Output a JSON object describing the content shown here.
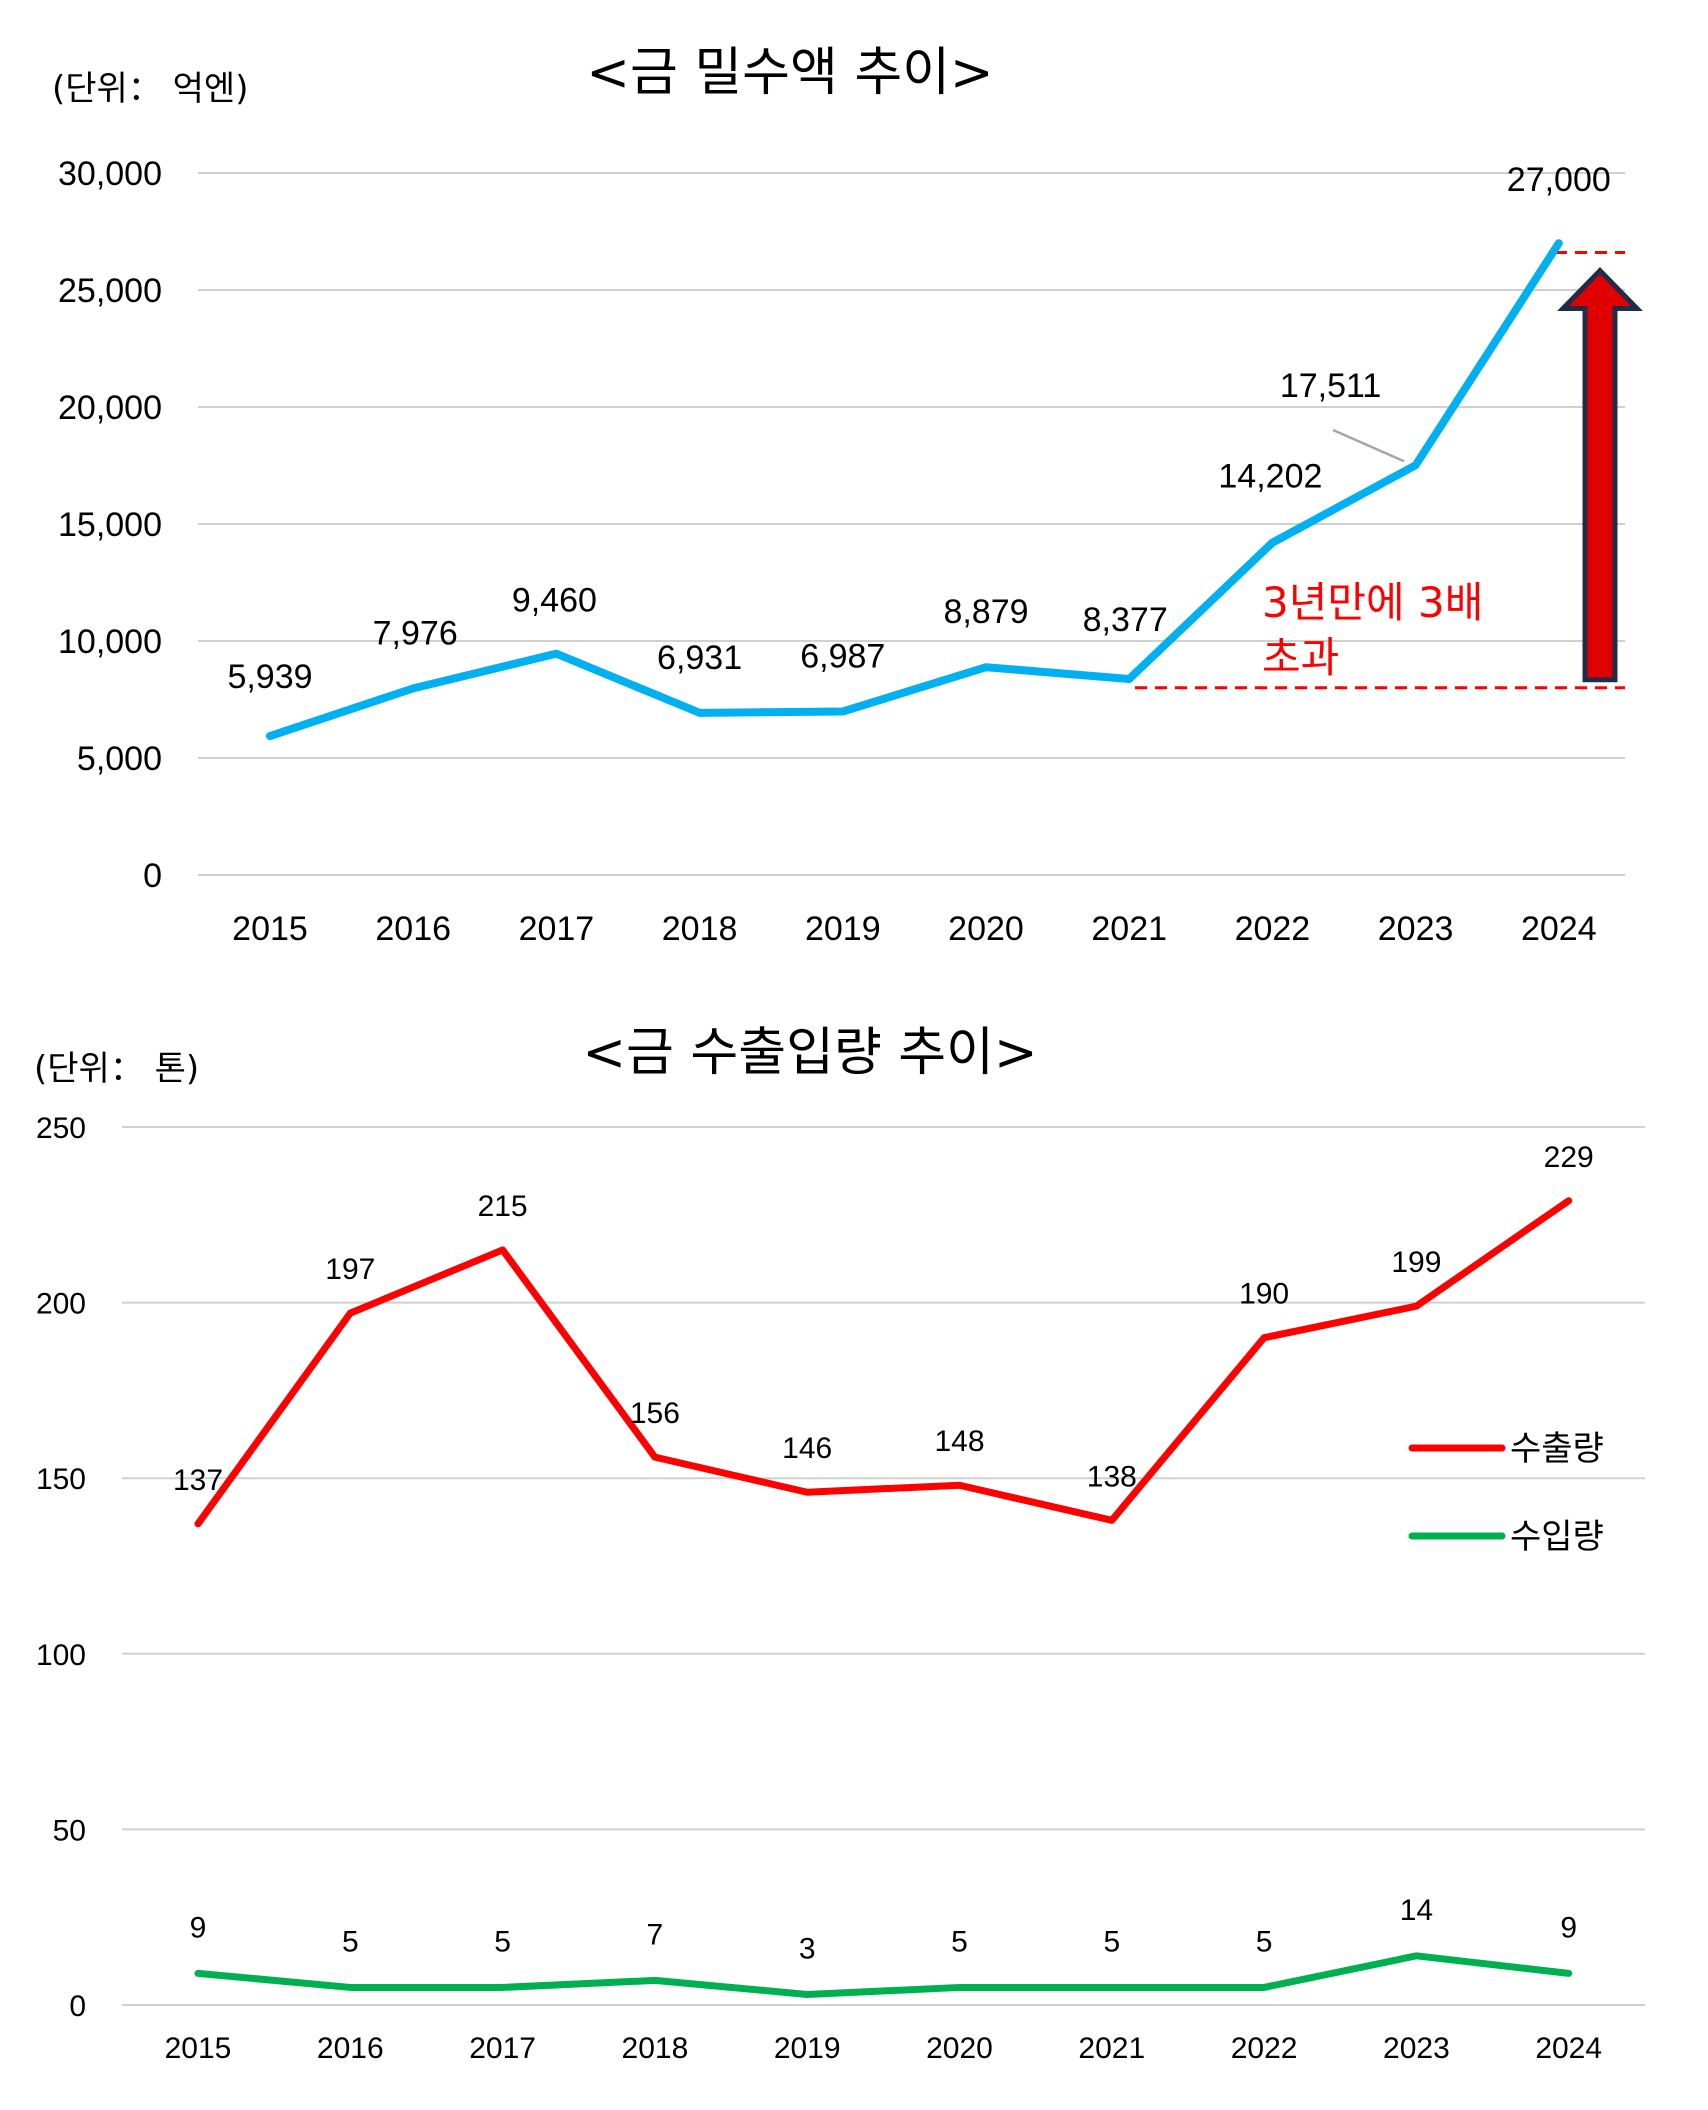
{
  "colors": {
    "gold_imports_line": "#00b0f0",
    "exports_line": "#ff0000",
    "imports_line": "#00b050",
    "annotation": "#ff0000",
    "arrow_fill": "#e00000",
    "arrow_outline": "#1f2d4a",
    "grid": "#d0d0d0"
  },
  "chart_data": [
    {
      "type": "line",
      "title": "<금 밀수액 추이>",
      "unit_label": "(단위： 억엔)",
      "categories": [
        "2015",
        "2016",
        "2017",
        "2018",
        "2019",
        "2020",
        "2021",
        "2022",
        "2023",
        "2024"
      ],
      "series": [
        {
          "values": [
            5939,
            7976,
            9460,
            6931,
            6987,
            8879,
            8377,
            14202,
            17511,
            27000
          ]
        }
      ],
      "data_labels": [
        "5,939",
        "7,976",
        "9,460",
        "6,931",
        "6,987",
        "8,879",
        "8,377",
        "14,202",
        "17,511",
        "27,000"
      ],
      "y_ticks": [
        "0",
        "5,000",
        "10,000",
        "15,000",
        "20,000",
        "25,000",
        "30,000"
      ],
      "ylim": [
        0,
        30000
      ],
      "grid": true,
      "annotation": {
        "lines": [
          "3년만에  3배",
          "초과"
        ],
        "from_value": 8000,
        "to_value": 26600
      }
    },
    {
      "type": "line",
      "title": "<금 수출입량 추이>",
      "unit_label": "(단위：  톤)",
      "categories": [
        "2015",
        "2016",
        "2017",
        "2018",
        "2019",
        "2020",
        "2021",
        "2022",
        "2023",
        "2024"
      ],
      "series": [
        {
          "name": "수출량",
          "values": [
            137,
            197,
            215,
            156,
            146,
            148,
            138,
            190,
            199,
            229
          ]
        },
        {
          "name": "수입량",
          "values": [
            9,
            5,
            5,
            7,
            3,
            5,
            5,
            5,
            14,
            9
          ]
        }
      ],
      "y_ticks": [
        "0",
        "50",
        "100",
        "150",
        "200",
        "250"
      ],
      "ylim": [
        0,
        250
      ],
      "grid": true,
      "legend_position": "right-middle"
    }
  ]
}
